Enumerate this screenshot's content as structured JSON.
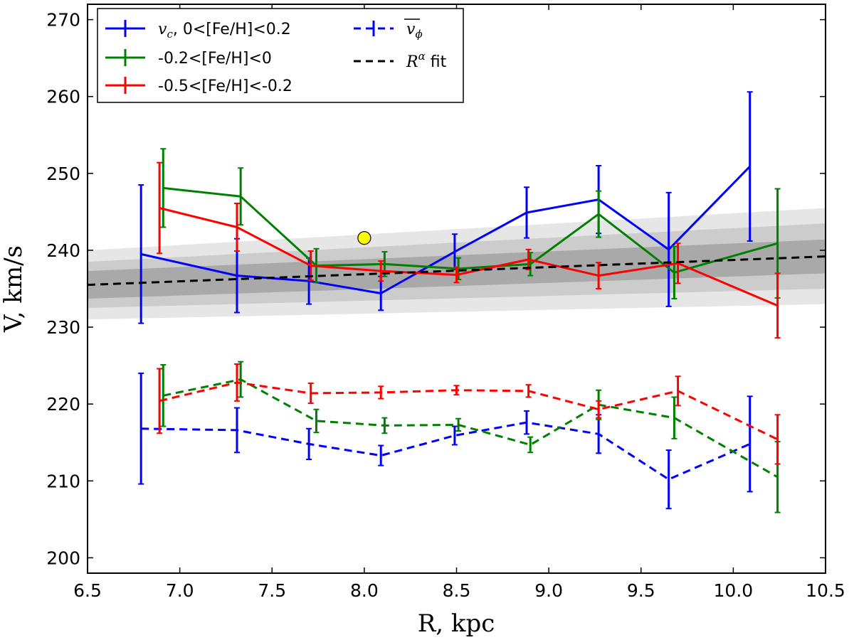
{
  "chart_data": {
    "type": "line",
    "xlabel": "R, kpc",
    "ylabel": "V, km/s",
    "xlim": [
      6.5,
      10.5
    ],
    "ylim": [
      198,
      272
    ],
    "xticks": [
      "6.5",
      "7.0",
      "7.5",
      "8.0",
      "8.5",
      "9.0",
      "9.5",
      "10.0",
      "10.5"
    ],
    "yticks": [
      "200",
      "210",
      "220",
      "230",
      "240",
      "250",
      "260",
      "270"
    ],
    "legend_position": "top-left",
    "legend": {
      "vc_symbol": "v",
      "vc_subscript": "c",
      "vc_rest": ", 0<[Fe/H]<0.2",
      "green": "-0.2<[Fe/H]<0",
      "red": "-0.5<[Fe/H]<-0.2",
      "vphi_symbol": "v",
      "vphi_subscript": "ϕ",
      "fit_symbol": "R",
      "fit_sup": "α",
      "fit_rest": " fit"
    },
    "series": [
      {
        "name": "vc, 0<[Fe/H]<0.2",
        "color": "#0000ff",
        "style": "solid",
        "x": [
          6.79,
          7.31,
          7.7,
          8.09,
          8.49,
          8.88,
          9.27,
          9.65,
          10.09
        ],
        "y": [
          239.5,
          236.7,
          236.0,
          234.4,
          239.8,
          244.9,
          246.6,
          240.1,
          250.9
        ],
        "err": [
          9.0,
          4.8,
          3.0,
          2.2,
          2.3,
          3.3,
          4.4,
          7.4,
          9.7
        ]
      },
      {
        "name": "-0.2<[Fe/H]<0",
        "color": "#008000",
        "style": "solid",
        "x": [
          6.91,
          7.33,
          7.74,
          8.11,
          8.51,
          8.9,
          9.27,
          9.68,
          10.24
        ],
        "y": [
          248.1,
          247.0,
          238.0,
          238.2,
          237.6,
          238.2,
          244.7,
          237.1,
          240.9
        ],
        "err": [
          5.1,
          3.7,
          2.2,
          1.6,
          1.4,
          1.5,
          3.0,
          3.4,
          7.1
        ]
      },
      {
        "name": "-0.5<[Fe/H]<-0.2",
        "color": "#ff0000",
        "style": "solid",
        "x": [
          6.89,
          7.31,
          7.71,
          8.09,
          8.5,
          8.89,
          9.27,
          9.7,
          10.24
        ],
        "y": [
          245.5,
          243.0,
          238.0,
          237.3,
          236.8,
          238.8,
          236.7,
          238.3,
          232.8
        ],
        "err": [
          5.9,
          3.1,
          1.9,
          1.3,
          1.0,
          1.3,
          1.7,
          2.6,
          4.2
        ]
      },
      {
        "name": "vphi 0<[Fe/H]<0.2",
        "color": "#0000ff",
        "style": "dashed",
        "x": [
          6.79,
          7.31,
          7.7,
          8.09,
          8.49,
          8.88,
          9.27,
          9.65,
          10.09
        ],
        "y": [
          216.8,
          216.6,
          214.8,
          213.3,
          215.9,
          217.6,
          216.1,
          210.2,
          214.8
        ],
        "err": [
          7.2,
          2.9,
          2.0,
          1.3,
          1.2,
          1.5,
          2.5,
          3.8,
          6.2
        ]
      },
      {
        "name": "vphi -0.2<[Fe/H]<0",
        "color": "#008000",
        "style": "dashed",
        "x": [
          6.91,
          7.33,
          7.74,
          8.11,
          8.51,
          8.9,
          9.27,
          9.68,
          10.24
        ],
        "y": [
          221.1,
          223.2,
          217.8,
          217.2,
          217.3,
          214.7,
          219.9,
          218.2,
          210.5
        ],
        "err": [
          4.0,
          2.3,
          1.5,
          1.0,
          0.8,
          1.0,
          1.9,
          2.7,
          4.6
        ]
      },
      {
        "name": "vphi -0.5<[Fe/H]<-0.2",
        "color": "#ff0000",
        "style": "dashed",
        "x": [
          6.89,
          7.31,
          7.71,
          8.09,
          8.5,
          8.89,
          9.27,
          9.7,
          10.24
        ],
        "y": [
          220.4,
          222.8,
          221.4,
          221.5,
          221.8,
          221.7,
          219.3,
          221.7,
          215.4
        ],
        "err": [
          4.2,
          2.4,
          1.3,
          0.8,
          0.6,
          0.8,
          1.1,
          1.9,
          3.2
        ]
      },
      {
        "name": "R^alpha fit",
        "color": "#000000",
        "style": "dashed",
        "x": [
          6.5,
          10.5
        ],
        "y": [
          235.5,
          239.2
        ]
      }
    ],
    "fit_bands": [
      {
        "color": "#e6e6e6",
        "left": [
          231.0,
          240.0
        ],
        "right": [
          233.0,
          245.5
        ]
      },
      {
        "color": "#cccccc",
        "left": [
          232.5,
          238.5
        ],
        "right": [
          235.0,
          243.5
        ]
      },
      {
        "color": "#a9a9a9",
        "left": [
          233.7,
          237.3
        ],
        "right": [
          237.0,
          241.4
        ]
      }
    ],
    "marker": {
      "x": 8.0,
      "y": 241.6,
      "color": "#ffff00"
    }
  }
}
